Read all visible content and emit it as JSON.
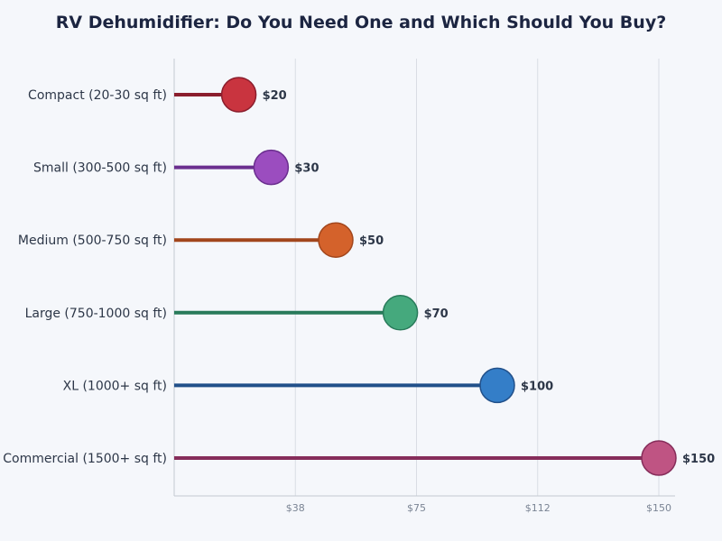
{
  "chart_data": {
    "type": "lollipop",
    "title": "RV Dehumidifier: Do You Need One and Which Should You Buy?",
    "xlabel": "",
    "ylabel": "",
    "xlim": [
      0,
      150
    ],
    "x_ticks": [
      37.5,
      75,
      112.5,
      150
    ],
    "x_tick_labels": [
      "$38",
      "$75",
      "$112",
      "$150"
    ],
    "grid": "vertical",
    "categories": [
      "Compact (20-30 sq ft)",
      "Small (300-500 sq ft)",
      "Medium (500-750 sq ft)",
      "Large (750-1000 sq ft)",
      "XL (1000+ sq ft)",
      "Commercial (1500+ sq ft)"
    ],
    "values": [
      20,
      30,
      50,
      70,
      100,
      150
    ],
    "value_labels": [
      "$20",
      "$30",
      "$50",
      "$70",
      "$100",
      "$150"
    ],
    "colors": [
      {
        "line": "#8b1e2d",
        "fill": "#c9343f",
        "stroke": "#8b1e2d"
      },
      {
        "line": "#6b2f8f",
        "fill": "#9b4dbf",
        "stroke": "#6b2f8f"
      },
      {
        "line": "#a2461c",
        "fill": "#d4622b",
        "stroke": "#a2461c"
      },
      {
        "line": "#287a5a",
        "fill": "#45a97d",
        "stroke": "#287a5a"
      },
      {
        "line": "#21508a",
        "fill": "#347ec8",
        "stroke": "#21508a"
      },
      {
        "line": "#862d5a",
        "fill": "#bf5483",
        "stroke": "#862d5a"
      }
    ]
  }
}
